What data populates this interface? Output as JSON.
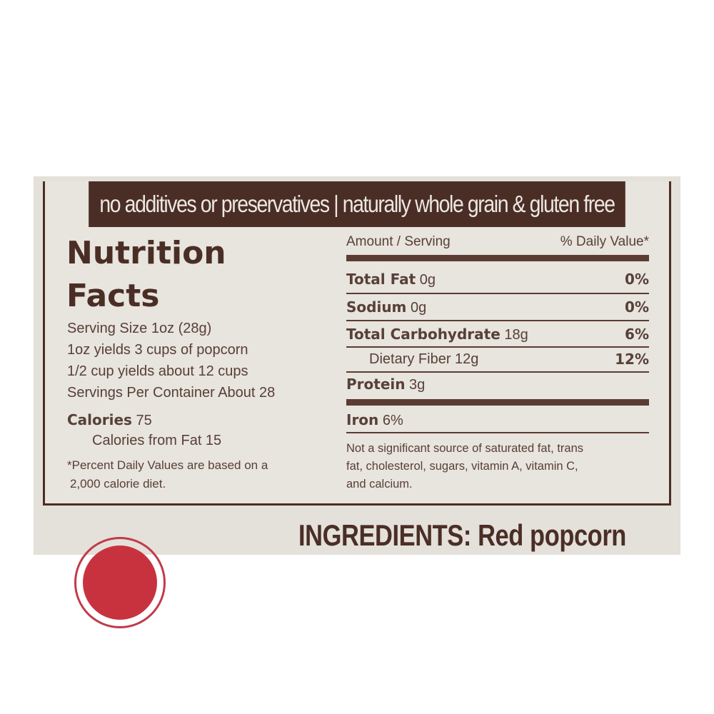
{
  "banner": "no additives or preservatives | naturally whole grain & gluten free",
  "left": {
    "title_line1": "Nutrition",
    "title_line2": "Facts",
    "serving_size": "Serving Size 1oz (28g)",
    "yield1": "1oz yields 3 cups of popcorn",
    "yield2": "1/2 cup yields about 12 cups",
    "servings_per_container": "Servings Per Container About 28",
    "calories_label": "Calories",
    "calories_value": " 75",
    "calories_from_fat": "Calories from Fat 15",
    "footnote_line1": "*Percent Daily Values are based on a",
    "footnote_line2": "2,000 calorie diet."
  },
  "right": {
    "amount_header": "Amount / Serving",
    "dv_header": "% Daily Value*",
    "nutrients": [
      {
        "name": "Total Fat",
        "amount": " 0g",
        "dv": "0%"
      },
      {
        "name": "Sodium",
        "amount": " 0g",
        "dv": "0%"
      },
      {
        "name": "Total Carbohydrate",
        "amount": " 18g",
        "dv": "6%"
      },
      {
        "name": "",
        "amount": "Dietary Fiber 12g",
        "dv": "12%"
      },
      {
        "name": "Protein",
        "amount": " 3g",
        "dv": ""
      }
    ],
    "iron_label": "Iron",
    "iron_value": " 6%",
    "note_line1": "Not a significant source of saturated fat, trans",
    "note_line2": "fat, cholesterol, sugars, vitamin A, vitamin C,",
    "note_line3": "and calcium."
  },
  "ingredients": "INGREDIENTS: Red popcorn",
  "colors": {
    "brown": "#4a2e26",
    "background": "#e4e0da",
    "seal_red": "#c8323f"
  }
}
